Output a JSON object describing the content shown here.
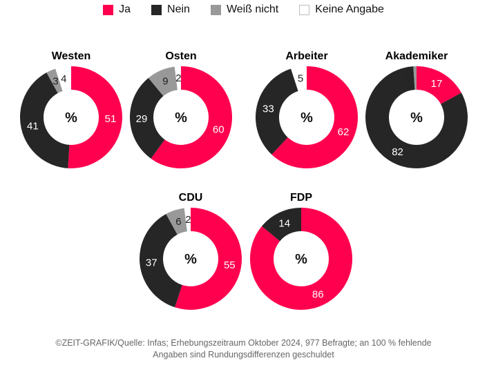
{
  "colors": {
    "ja": "#ff004f",
    "nein": "#262626",
    "weiss": "#999999",
    "keine": "#ffffff"
  },
  "legend": [
    {
      "key": "ja",
      "label": "Ja"
    },
    {
      "key": "nein",
      "label": "Nein"
    },
    {
      "key": "weiss",
      "label": "Weiß nicht"
    },
    {
      "key": "keine",
      "label": "Keine Angabe"
    }
  ],
  "chart_data": {
    "type": "pie",
    "variant": "donut",
    "center_label": "%",
    "series_order": [
      "Ja",
      "Nein",
      "Weiß nicht",
      "Keine Angabe"
    ],
    "charts": [
      {
        "title": "Westen",
        "values": [
          51,
          41,
          3,
          4
        ]
      },
      {
        "title": "Osten",
        "values": [
          60,
          29,
          9,
          2
        ]
      },
      {
        "title": "Arbeiter",
        "values": [
          62,
          33,
          0,
          5
        ]
      },
      {
        "title": "Akademiker",
        "values": [
          17,
          82,
          1,
          0
        ]
      },
      {
        "title": "CDU",
        "values": [
          55,
          37,
          6,
          2
        ]
      },
      {
        "title": "FDP",
        "values": [
          86,
          14,
          0,
          0
        ]
      }
    ]
  },
  "footer": {
    "line1": "©ZEIT-GRAFIK/Quelle: Infas; Erhebungszeitraum Oktober 2024, 977 Befragte; an 100 % fehlende",
    "line2": "Angaben sind Rundungsdifferenzen geschuldet"
  }
}
